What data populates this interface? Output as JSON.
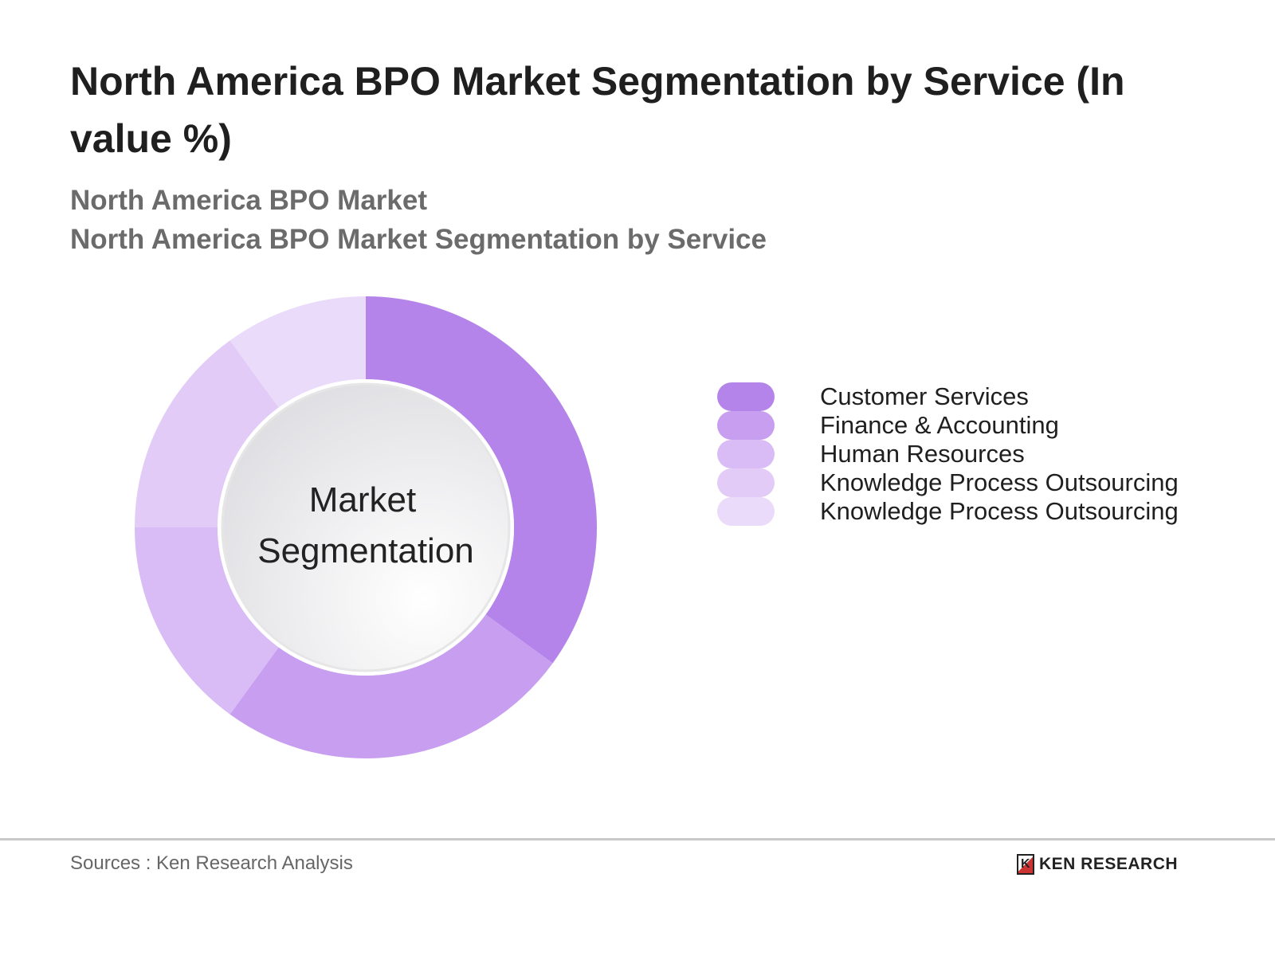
{
  "title": "North America BPO Market Segmentation by Service (In value %)",
  "subtitle1": "North America BPO Market",
  "subtitle2": "North America BPO Market Segmentation by Service",
  "chart_data": {
    "type": "pie",
    "variant": "donut",
    "center_label": [
      "Market",
      "Segmentation"
    ],
    "categories": [
      "Customer Services",
      "Finance & Accounting",
      "Human Resources",
      "Knowledge Process Outsourcing",
      "Knowledge Process Outsourcing"
    ],
    "values": [
      35,
      25,
      15,
      15,
      10
    ],
    "colors": [
      "#b484eb",
      "#c89ef0",
      "#d9bcf5",
      "#e2cbf7",
      "#eadbfa"
    ],
    "legend_position": "right"
  },
  "footer": {
    "source": "Sources : Ken Research Analysis",
    "logo_mark": "K",
    "logo_text": "KEN RESEARCH"
  }
}
